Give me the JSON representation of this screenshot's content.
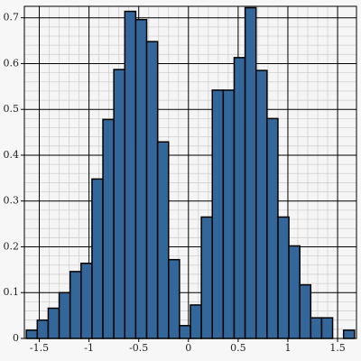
{
  "chart_data": {
    "type": "histogram",
    "bins": [
      -1.63,
      -1.52,
      -1.41,
      -1.3,
      -1.19,
      -1.08,
      -0.97,
      -0.86,
      -0.75,
      -0.64,
      -0.53,
      -0.42,
      -0.31,
      -0.2,
      -0.09,
      0.02,
      0.13,
      0.24,
      0.35,
      0.46,
      0.57,
      0.68,
      0.79,
      0.9,
      1.01,
      1.12,
      1.23,
      1.34,
      1.45,
      1.56,
      1.67
    ],
    "values": [
      0.018,
      0.04,
      0.066,
      0.1,
      0.146,
      0.164,
      0.348,
      0.478,
      0.587,
      0.714,
      0.696,
      0.648,
      0.429,
      0.172,
      0.028,
      0.073,
      0.265,
      0.542,
      0.542,
      0.613,
      0.722,
      0.585,
      0.48,
      0.265,
      0.202,
      0.117,
      0.045,
      0.045,
      0,
      0.018
    ],
    "color": "#336699",
    "xlim": [
      -1.65,
      1.69
    ],
    "ylim": [
      0,
      0.725
    ],
    "xticks": [
      -1.5,
      -1,
      -0.5,
      0,
      0.5,
      1,
      1.5
    ],
    "yticks": [
      0,
      0.1,
      0.2,
      0.3,
      0.4,
      0.5,
      0.6,
      0.7
    ],
    "grid": true,
    "minor_grid": true
  }
}
